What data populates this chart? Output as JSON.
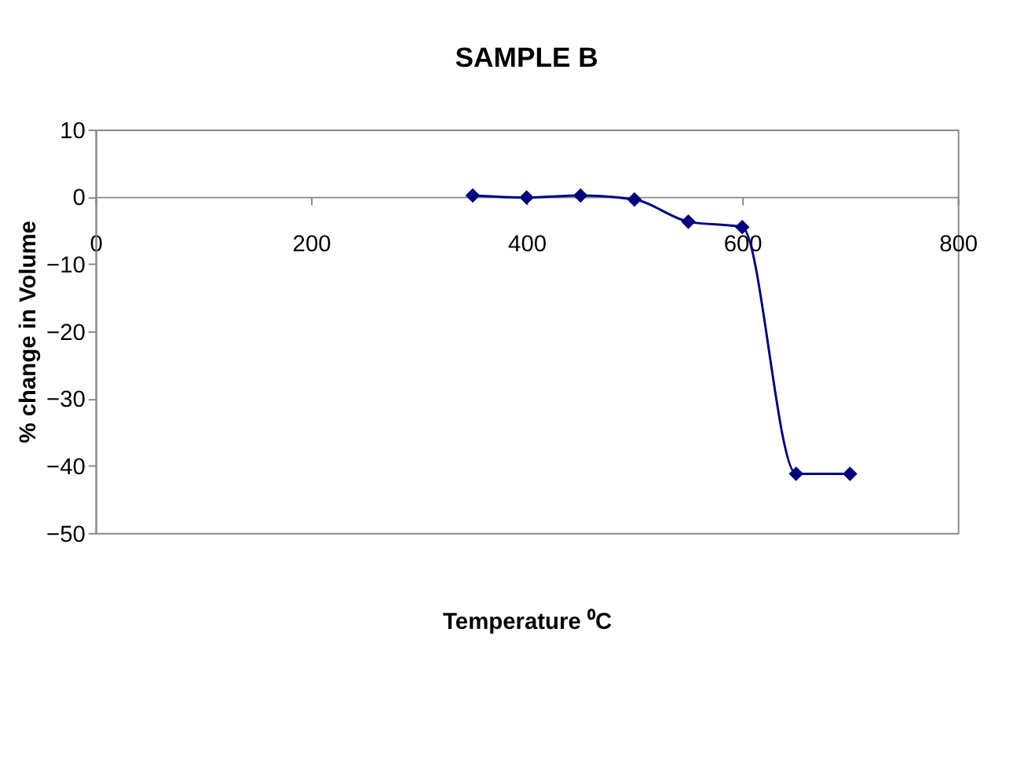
{
  "chart_data": {
    "type": "line",
    "title": "SAMPLE B",
    "xlabel": "Temperature ⁰C",
    "ylabel": "% change in Volume",
    "x": [
      350,
      400,
      450,
      500,
      550,
      600,
      650,
      700
    ],
    "series": [
      {
        "color": "#000080",
        "values": [
          0.2,
          -0.1,
          0.2,
          -0.4,
          -3.7,
          -4.5,
          -41.2,
          -41.2
        ]
      }
    ],
    "xlim": [
      0,
      800
    ],
    "xticks": [
      0,
      200,
      400,
      600,
      800
    ],
    "ylim": [
      -50,
      10
    ],
    "yticks": [
      -50,
      -40,
      -30,
      -20,
      -10,
      0,
      10
    ],
    "grid": false,
    "marker": "diamond",
    "line_style": "solid"
  }
}
